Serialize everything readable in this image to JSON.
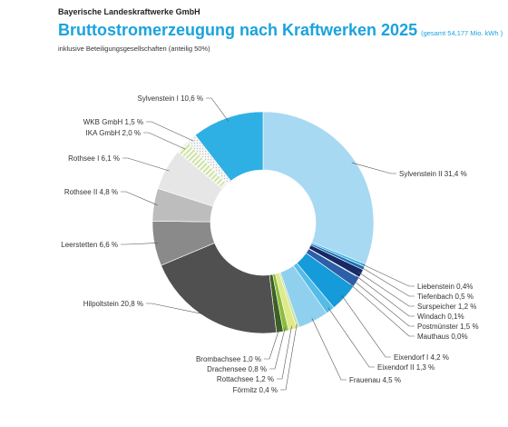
{
  "header": {
    "company": "Bayerische Landeskraftwerke GmbH",
    "title": "Bruttostromerzeugung nach Kraftwerken 2025",
    "total": "(gesamt 54,177 Mio. kWh )",
    "subtitle": "inklusive Beteiligungsgesellschaften (anteilig 50%)"
  },
  "chart_data": {
    "type": "pie",
    "variant": "donut",
    "title": "Bruttostromerzeugung nach Kraftwerken 2025",
    "unit": "%",
    "slices": [
      {
        "name": "Sylvenstein II",
        "label": "Sylvenstein II 31,4 %",
        "value": 31.4,
        "color": "#a8d9f2"
      },
      {
        "name": "Liebenstein",
        "label": "Liebenstein 0,4%",
        "value": 0.4,
        "color": "#3fb7e6"
      },
      {
        "name": "Tiefenbach",
        "label": "Tiefenbach 0,5 %",
        "value": 0.5,
        "color": "#1f6fb2"
      },
      {
        "name": "Surspeicher",
        "label": "Surspeicher 1,2 %",
        "value": 1.2,
        "color": "#152a66"
      },
      {
        "name": "Windach",
        "label": "Windach 0,1%",
        "value": 0.1,
        "color": "#5a6fa8"
      },
      {
        "name": "Postmünster",
        "label": "Postmünster 1,5 %",
        "value": 1.5,
        "color": "#2c5fa8"
      },
      {
        "name": "Mauthaus",
        "label": "Mauthaus 0,0%",
        "value": 0.0,
        "color": "#2c5fa8"
      },
      {
        "name": "Eixendorf I",
        "label": "Eixendorf I 4,2 %",
        "value": 4.2,
        "color": "#159bd9"
      },
      {
        "name": "Eixendorf II",
        "label": "Eixendorf II 1,3 %",
        "value": 1.3,
        "color": "#55bce8"
      },
      {
        "name": "Frauenau",
        "label": "Frauenau 4,5 %",
        "value": 4.5,
        "color": "#8fd0ee"
      },
      {
        "name": "Förmitz",
        "label": "Förmitz 0,4 %",
        "value": 0.4,
        "color": "#c7e39b"
      },
      {
        "name": "Rottachsee",
        "label": "Rottachsee 1,2 %",
        "value": 1.2,
        "color": "#dfe98a"
      },
      {
        "name": "Drachensee",
        "label": "Drachensee 0,8 %",
        "value": 0.8,
        "color": "#8cbd3c"
      },
      {
        "name": "Brombachsee",
        "label": "Brombachsee 1,0 %",
        "value": 1.0,
        "color": "#3d5f24"
      },
      {
        "name": "Hilpoltstein",
        "label": "Hilpoltstein 20,8 %",
        "value": 20.8,
        "color": "#505050"
      },
      {
        "name": "Leerstetten",
        "label": "Leerstetten 6,6 %",
        "value": 6.6,
        "color": "#8a8a8a"
      },
      {
        "name": "Rothsee II",
        "label": "Rothsee II 4,8 %",
        "value": 4.8,
        "color": "#bdbdbd"
      },
      {
        "name": "Rothsee I",
        "label": "Rothsee I 6,1 %",
        "value": 6.1,
        "color": "#e6e6e6"
      },
      {
        "name": "IKA GmbH",
        "label": "IKA GmbH 2,0 %",
        "value": 2.0,
        "color": "#e8f2d0",
        "pattern": "hatch"
      },
      {
        "name": "WKB GmbH",
        "label": "WKB GmbH 1,5 %",
        "value": 1.5,
        "color": "#eeeeee",
        "pattern": "dots"
      },
      {
        "name": "Sylvenstein I",
        "label": "Sylvenstein I 10,6 %",
        "value": 10.6,
        "color": "#2fb0e4"
      }
    ]
  }
}
